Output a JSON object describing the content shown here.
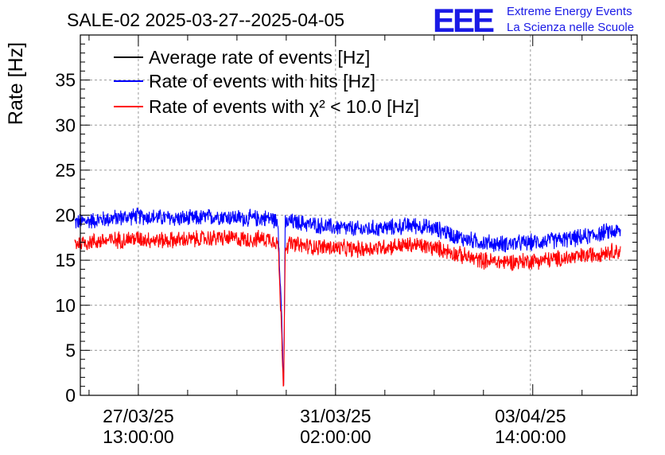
{
  "title": "SALE-02 2025-03-27--2025-04-05",
  "logo": {
    "mark": "EEE",
    "line1": "Extreme Energy Events",
    "line2": "La Scienza nelle Scuole",
    "color": "#1a1ae6"
  },
  "chart_data": {
    "type": "line",
    "title": "SALE-02 2025-03-27--2025-04-05",
    "ylabel": "Rate [Hz]",
    "xlabel": "",
    "ylim": [
      0,
      40
    ],
    "yticks": [
      0,
      5,
      10,
      15,
      20,
      25,
      30,
      35
    ],
    "x_unit": "days since 2025-03-27 00:00",
    "xlim": [
      -0.5,
      9.5
    ],
    "xticks": [
      {
        "x": 0.5417,
        "line1": "27/03/25",
        "line2": "13:00:00"
      },
      {
        "x": 4.0833,
        "line1": "31/03/25",
        "line2": "02:00:00"
      },
      {
        "x": 7.5833,
        "line1": "03/04/25",
        "line2": "14:00:00"
      }
    ],
    "grid": true,
    "legend_position": "top-left",
    "series": [
      {
        "name": "Average rate of events [Hz]",
        "color": "#000000",
        "x": [],
        "values": []
      },
      {
        "name": "Rate of events with hits [Hz]",
        "color": "#0000ff",
        "x": [
          -0.6,
          0.0,
          0.5,
          1.0,
          1.5,
          2.0,
          2.5,
          2.9,
          3.05,
          3.12,
          3.15,
          3.18,
          3.25,
          3.5,
          4.0,
          4.5,
          5.0,
          5.5,
          6.0,
          6.3,
          6.6,
          7.0,
          7.5,
          8.0,
          8.5,
          9.0,
          9.2
        ],
        "values": [
          19.2,
          19.6,
          19.9,
          19.7,
          19.6,
          19.9,
          19.6,
          19.7,
          19.3,
          8.0,
          0.0,
          19.0,
          19.3,
          19.1,
          18.7,
          18.4,
          18.6,
          18.9,
          18.3,
          17.5,
          17.1,
          16.8,
          16.9,
          17.2,
          17.5,
          18.2,
          18.2
        ],
        "noise": 0.55
      },
      {
        "name": "Rate of events with χ² < 10.0 [Hz]",
        "color": "#ff0000",
        "x": [
          -0.6,
          0.0,
          0.5,
          1.0,
          1.5,
          2.0,
          2.5,
          2.9,
          3.05,
          3.12,
          3.15,
          3.18,
          3.25,
          3.5,
          4.0,
          4.5,
          5.0,
          5.5,
          6.0,
          6.3,
          6.6,
          7.0,
          7.5,
          8.0,
          8.5,
          9.0,
          9.2
        ],
        "values": [
          16.9,
          17.2,
          17.4,
          17.2,
          17.3,
          17.5,
          17.3,
          17.4,
          17.0,
          6.0,
          0.0,
          16.6,
          16.8,
          16.6,
          16.4,
          16.2,
          16.5,
          16.7,
          16.2,
          15.6,
          15.1,
          14.8,
          14.9,
          15.1,
          15.4,
          16.0,
          16.0
        ],
        "noise": 0.55
      }
    ]
  }
}
